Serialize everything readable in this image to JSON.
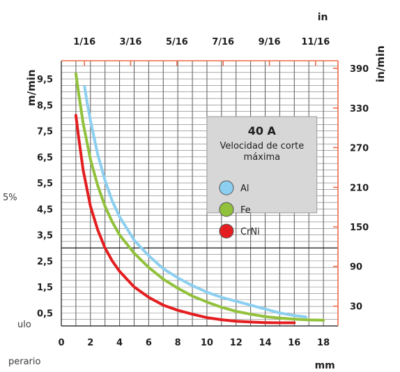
{
  "chart_data": {
    "type": "line",
    "x_units_bottom": "mm",
    "x_units_top": "in",
    "y_units_left": "m/min",
    "y_units_right": "in/min",
    "xlim": [
      0,
      19
    ],
    "ylim": [
      0,
      10.2
    ],
    "x_ticks_bottom": [
      {
        "v": 0,
        "label": "0"
      },
      {
        "v": 2,
        "label": "2"
      },
      {
        "v": 4,
        "label": "4"
      },
      {
        "v": 6,
        "label": "6"
      },
      {
        "v": 8,
        "label": "8"
      },
      {
        "v": 10,
        "label": "10"
      },
      {
        "v": 12,
        "label": "12"
      },
      {
        "v": 14,
        "label": "14"
      },
      {
        "v": 16,
        "label": "16"
      },
      {
        "v": 18,
        "label": "18"
      }
    ],
    "x_ticks_top": [
      {
        "v": 1.59,
        "label": "1/16"
      },
      {
        "v": 4.76,
        "label": "3/16"
      },
      {
        "v": 7.94,
        "label": "5/16"
      },
      {
        "v": 11.11,
        "label": "7/16"
      },
      {
        "v": 14.29,
        "label": "9/16"
      },
      {
        "v": 17.46,
        "label": "11/16"
      }
    ],
    "y_ticks_left": [
      {
        "v": 0.5,
        "label": "0,5"
      },
      {
        "v": 1.5,
        "label": "1,5"
      },
      {
        "v": 2.5,
        "label": "2,5"
      },
      {
        "v": 3.5,
        "label": "3,5"
      },
      {
        "v": 4.5,
        "label": "4,5"
      },
      {
        "v": 5.5,
        "label": "5,5"
      },
      {
        "v": 6.5,
        "label": "6,5"
      },
      {
        "v": 7.5,
        "label": "7,5"
      },
      {
        "v": 8.5,
        "label": "8,5"
      },
      {
        "v": 9.5,
        "label": "9,5"
      }
    ],
    "y_ticks_right": [
      {
        "v": 0.76,
        "label": "30"
      },
      {
        "v": 2.29,
        "label": "90"
      },
      {
        "v": 3.81,
        "label": "150"
      },
      {
        "v": 5.33,
        "label": "210"
      },
      {
        "v": 6.86,
        "label": "270"
      },
      {
        "v": 8.38,
        "label": "330"
      },
      {
        "v": 9.91,
        "label": "390"
      }
    ],
    "legend": {
      "title": "40 A",
      "subtitle_lines": [
        "Velocidad de corte",
        "máxima"
      ],
      "placement": "top-right"
    },
    "series": [
      {
        "name": "Al",
        "color": "#8ccff0",
        "x": [
          1.6,
          1.8,
          2,
          2.5,
          3,
          3.5,
          4,
          5,
          6,
          7,
          8,
          9,
          10,
          11,
          12,
          13,
          14,
          15,
          16,
          16.8
        ],
        "y": [
          9.2,
          8.5,
          7.9,
          6.6,
          5.6,
          4.8,
          4.2,
          3.3,
          2.7,
          2.2,
          1.85,
          1.55,
          1.3,
          1.1,
          0.95,
          0.8,
          0.65,
          0.5,
          0.4,
          0.35
        ]
      },
      {
        "name": "Fe",
        "color": "#92c13c",
        "x": [
          1,
          1.2,
          1.5,
          2,
          2.5,
          3,
          3.5,
          4,
          5,
          6,
          7,
          8,
          9,
          10,
          11,
          12,
          13,
          14,
          15,
          16,
          17,
          18
        ],
        "y": [
          9.7,
          8.9,
          7.8,
          6.4,
          5.4,
          4.6,
          4.0,
          3.5,
          2.8,
          2.25,
          1.8,
          1.45,
          1.15,
          0.92,
          0.72,
          0.56,
          0.45,
          0.36,
          0.3,
          0.26,
          0.23,
          0.22
        ]
      },
      {
        "name": "CrNi",
        "color": "#e41e20",
        "x": [
          1,
          1.2,
          1.5,
          2,
          2.5,
          3,
          3.5,
          4,
          5,
          6,
          7,
          8,
          9,
          10,
          11,
          12,
          13,
          14,
          15,
          16
        ],
        "y": [
          8.1,
          7.2,
          6.0,
          4.6,
          3.7,
          3.0,
          2.5,
          2.1,
          1.5,
          1.1,
          0.8,
          0.6,
          0.45,
          0.32,
          0.24,
          0.18,
          0.15,
          0.13,
          0.12,
          0.12
        ]
      }
    ]
  },
  "margin_fragments": [
    "5%",
    "ulo",
    "perario"
  ]
}
